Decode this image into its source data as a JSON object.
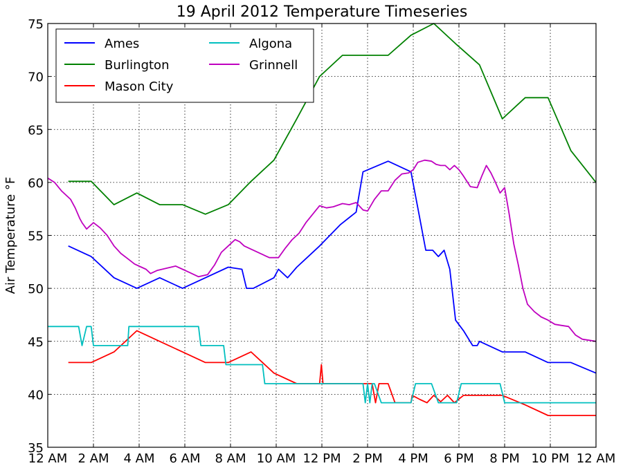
{
  "chart_data": {
    "type": "line",
    "title": "19 April 2012 Temperature Timeseries",
    "xlabel": "",
    "ylabel": "Air Temperature °F",
    "xlim": [
      0,
      24
    ],
    "ylim": [
      35,
      75
    ],
    "x_ticks": [
      0,
      2,
      4,
      6,
      8,
      10,
      12,
      14,
      16,
      18,
      20,
      22,
      24
    ],
    "x_tick_labels": [
      "12 AM",
      "2 AM",
      "4 AM",
      "6 AM",
      "8 AM",
      "10 AM",
      "12 PM",
      "2 PM",
      "4 PM",
      "6 PM",
      "8 PM",
      "10 PM",
      "12 AM"
    ],
    "y_ticks": [
      35,
      40,
      45,
      50,
      55,
      60,
      65,
      70,
      75
    ],
    "y_tick_labels": [
      "35",
      "40",
      "45",
      "50",
      "55",
      "60",
      "65",
      "70",
      "75"
    ],
    "grid": true,
    "legend_position": "top-left",
    "legend_columns": 2,
    "series": [
      {
        "name": "Ames",
        "color": "#0000ff",
        "x": [
          0.9,
          1.9,
          2.9,
          3.9,
          4.9,
          5.9,
          6.9,
          7.9,
          8.5,
          8.7,
          9.0,
          9.9,
          10.1,
          10.5,
          10.9,
          11.9,
          12.8,
          13.5,
          13.8,
          14.9,
          15.9,
          16.25,
          16.55,
          16.85,
          17.1,
          17.35,
          17.6,
          17.85,
          18.2,
          18.6,
          18.8,
          18.9,
          19.9,
          20.9,
          21.9,
          22.9,
          24.0
        ],
        "y": [
          54.0,
          53.0,
          51.0,
          50.0,
          51.0,
          50.0,
          51.0,
          52.0,
          51.8,
          50.0,
          50.0,
          51.0,
          51.8,
          51.0,
          52.0,
          54.0,
          56.0,
          57.2,
          61.0,
          62.0,
          61.0,
          57.0,
          53.6,
          53.6,
          53.0,
          53.6,
          51.8,
          47.0,
          46.0,
          44.6,
          44.6,
          45.0,
          44.0,
          44.0,
          43.0,
          43.0,
          42.0
        ]
      },
      {
        "name": "Burlington",
        "color": "#008000",
        "x": [
          0.9,
          1.9,
          2.9,
          3.9,
          4.9,
          5.9,
          6.9,
          7.9,
          8.9,
          9.9,
          10.9,
          11.9,
          12.9,
          13.9,
          14.9,
          15.9,
          16.9,
          17.9,
          18.9,
          19.9,
          20.9,
          21.9,
          22.9,
          24.0
        ],
        "y": [
          60.1,
          60.1,
          57.9,
          59.0,
          57.9,
          57.9,
          57.0,
          57.9,
          60.1,
          62.1,
          66.0,
          70.0,
          72.0,
          72.0,
          72.0,
          73.9,
          75.0,
          73.0,
          71.1,
          66.0,
          68.0,
          68.0,
          63.0,
          60.0
        ]
      },
      {
        "name": "Mason City",
        "color": "#ff0000",
        "x": [
          0.9,
          1.9,
          2.9,
          3.9,
          4.9,
          5.9,
          6.9,
          7.9,
          8.9,
          9.9,
          10.9,
          11.9,
          11.98,
          12.05,
          12.15,
          12.9,
          13.9,
          14.2,
          14.35,
          14.5,
          14.7,
          14.9,
          15.2,
          15.9,
          15.95,
          16.3,
          16.6,
          16.9,
          17.2,
          17.5,
          17.8,
          18.2,
          18.9,
          19.9,
          20.9,
          21.9,
          22.9,
          24.0
        ],
        "y": [
          43.0,
          43.0,
          44.0,
          46.0,
          45.0,
          44.0,
          43.0,
          43.0,
          44.0,
          42.0,
          41.0,
          41.0,
          42.8,
          41.0,
          41.0,
          41.0,
          41.0,
          41.0,
          39.2,
          41.0,
          41.0,
          41.0,
          39.2,
          39.2,
          39.9,
          39.5,
          39.2,
          39.9,
          39.3,
          39.9,
          39.2,
          39.9,
          39.9,
          39.9,
          39.0,
          38.0,
          38.0,
          38.0
        ]
      },
      {
        "name": "Algona",
        "color": "#00bfbf",
        "x": [
          0.0,
          1.35,
          1.5,
          1.7,
          1.9,
          2.0,
          2.6,
          3.5,
          3.55,
          5.5,
          6.6,
          6.7,
          7.7,
          7.8,
          9.4,
          9.5,
          13.8,
          13.9,
          14.0,
          14.1,
          14.2,
          14.3,
          14.6,
          14.9,
          15.1,
          15.9,
          16.1,
          16.8,
          17.1,
          17.9,
          18.1,
          19.2,
          19.8,
          20.0,
          24.0
        ],
        "y": [
          46.4,
          46.4,
          44.6,
          46.4,
          46.4,
          44.6,
          44.6,
          44.6,
          46.4,
          46.4,
          46.4,
          44.6,
          44.6,
          42.8,
          42.8,
          41.0,
          41.0,
          39.2,
          41.0,
          39.2,
          41.0,
          41.0,
          39.2,
          39.2,
          39.2,
          39.2,
          41.0,
          41.0,
          39.2,
          39.2,
          41.0,
          41.0,
          41.0,
          39.2,
          39.2
        ]
      },
      {
        "name": "Grinnell",
        "color": "#bf00bf",
        "x": [
          0.0,
          0.3,
          0.6,
          1.0,
          1.2,
          1.4,
          1.5,
          1.7,
          2.0,
          2.3,
          2.6,
          2.9,
          3.2,
          3.5,
          3.8,
          4.1,
          4.3,
          4.5,
          4.8,
          5.2,
          5.6,
          5.9,
          6.2,
          6.6,
          7.0,
          7.3,
          7.6,
          7.9,
          8.2,
          8.4,
          8.6,
          8.9,
          9.3,
          9.7,
          10.1,
          10.4,
          10.7,
          11.0,
          11.3,
          11.6,
          11.9,
          12.2,
          12.5,
          12.9,
          13.2,
          13.5,
          13.8,
          14.0,
          14.3,
          14.6,
          14.9,
          15.2,
          15.5,
          15.8,
          16.0,
          16.2,
          16.5,
          16.8,
          17.0,
          17.2,
          17.4,
          17.6,
          17.8,
          18.0,
          18.2,
          18.5,
          18.8,
          19.0,
          19.2,
          19.4,
          19.6,
          19.8,
          20.0,
          20.2,
          20.4,
          20.6,
          20.8,
          21.0,
          21.3,
          21.6,
          21.9,
          22.2,
          22.5,
          22.8,
          23.1,
          23.4,
          23.7,
          24.0
        ],
        "y": [
          60.4,
          60.0,
          59.2,
          58.4,
          57.6,
          56.6,
          56.2,
          55.6,
          56.2,
          55.7,
          55.0,
          54.0,
          53.3,
          52.8,
          52.3,
          52.0,
          51.8,
          51.4,
          51.7,
          51.9,
          52.1,
          51.8,
          51.5,
          51.1,
          51.3,
          52.2,
          53.4,
          54.0,
          54.6,
          54.4,
          54.0,
          53.7,
          53.3,
          52.9,
          52.9,
          53.8,
          54.6,
          55.2,
          56.2,
          57.0,
          57.8,
          57.6,
          57.7,
          58.0,
          57.9,
          58.1,
          57.4,
          57.3,
          58.4,
          59.2,
          59.2,
          60.2,
          60.8,
          60.9,
          61.2,
          61.9,
          62.1,
          62.0,
          61.7,
          61.6,
          61.6,
          61.2,
          61.6,
          61.2,
          60.6,
          59.6,
          59.5,
          60.6,
          61.6,
          60.9,
          60.0,
          59.0,
          59.5,
          57.0,
          54.2,
          52.2,
          50.0,
          48.5,
          47.8,
          47.3,
          47.0,
          46.6,
          46.5,
          46.4,
          45.6,
          45.2,
          45.1,
          45.0
        ]
      }
    ]
  }
}
